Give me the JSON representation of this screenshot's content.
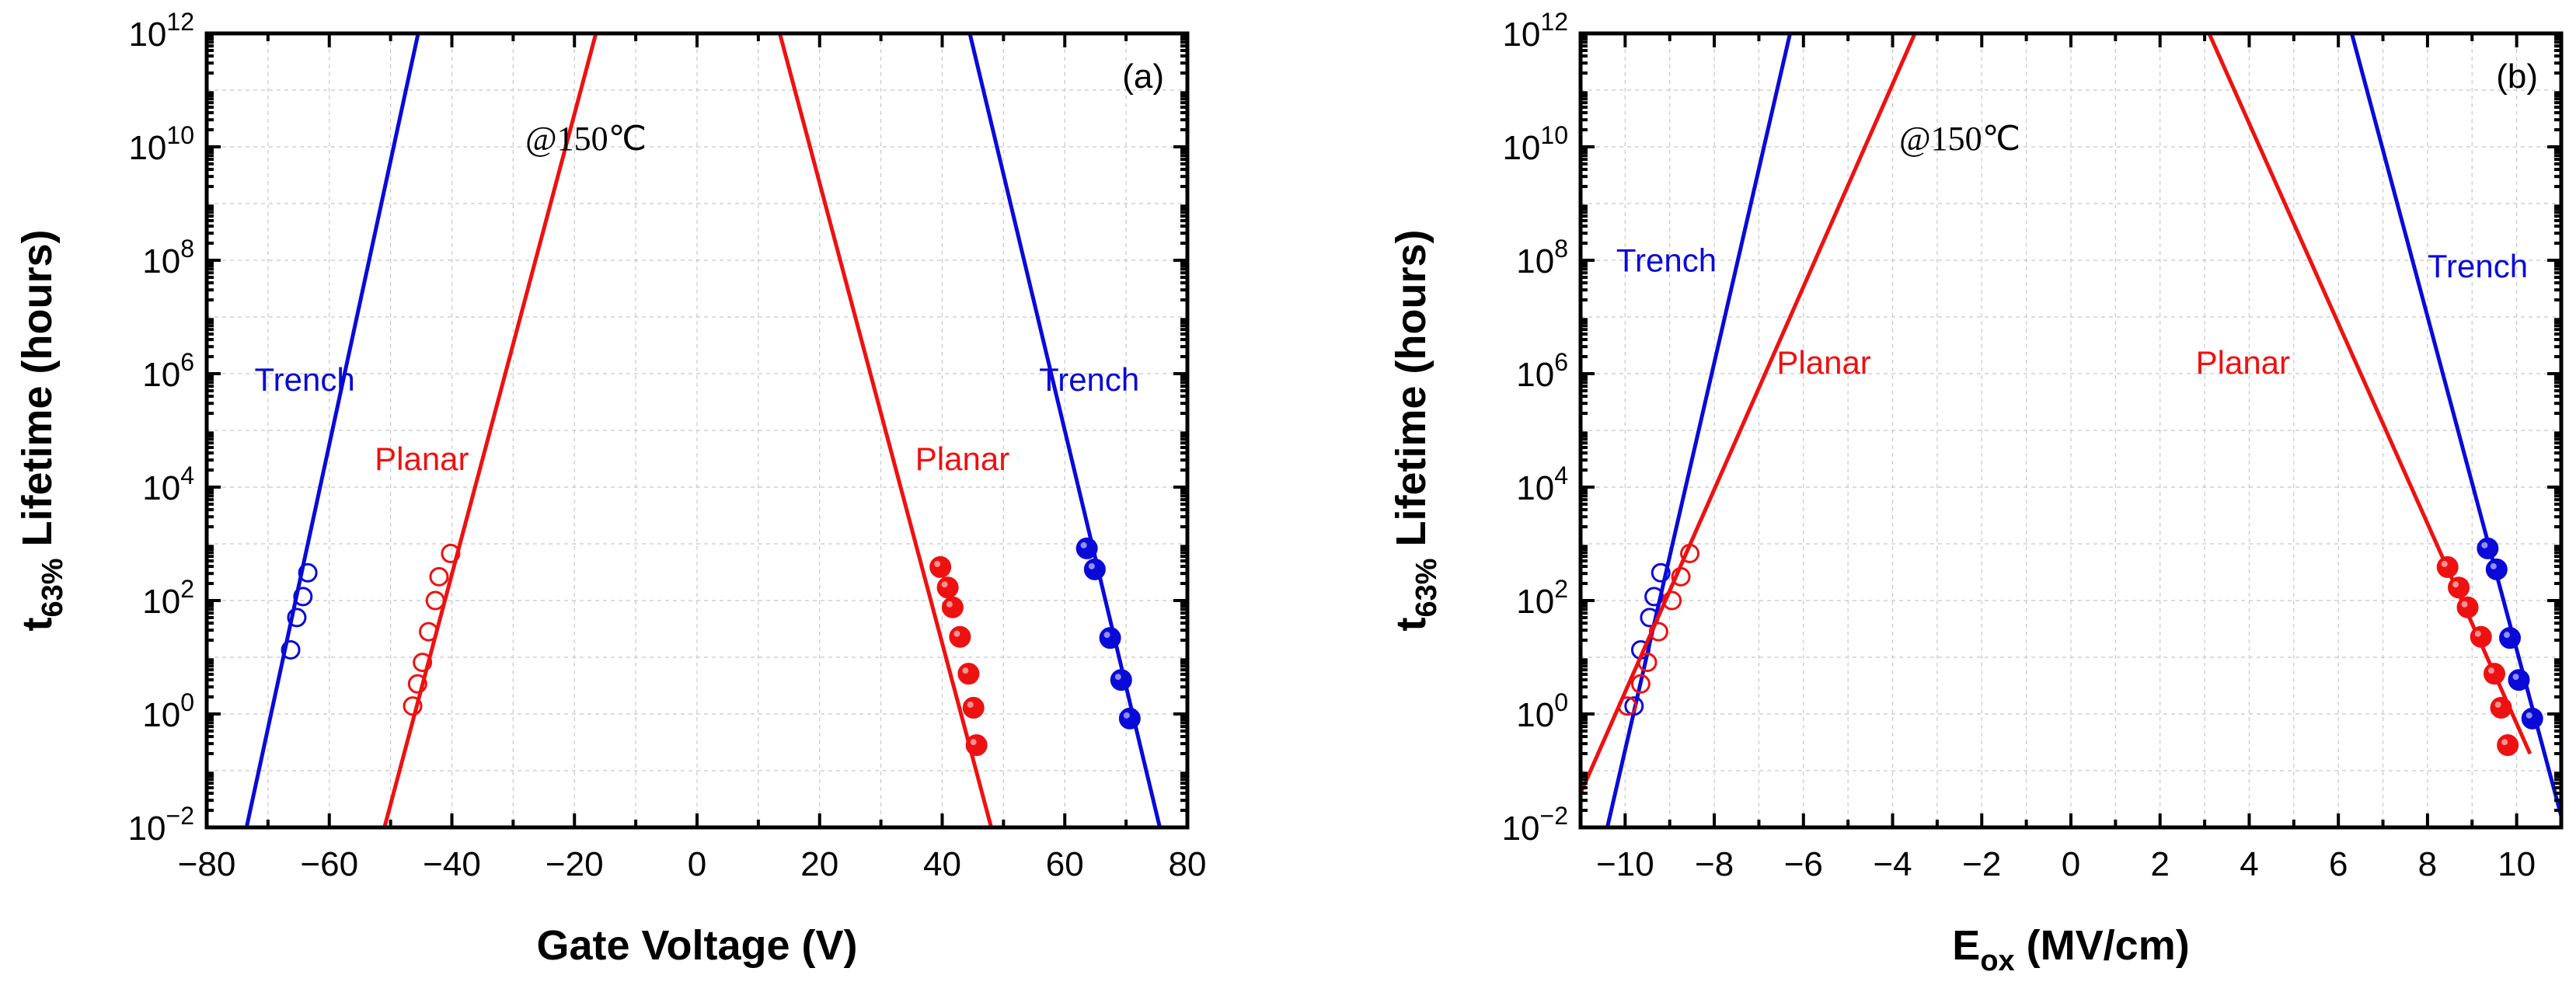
{
  "chart_data": [
    {
      "type": "scatter",
      "panel_label": "(a)",
      "annotation": "@150℃",
      "xlabel": "Gate Voltage (V)",
      "ylabel_main": "t",
      "ylabel_sub": "63%",
      "ylabel_rest": " Lifetime (hours)",
      "xlim": [
        -80,
        80
      ],
      "xticks": [
        -80,
        -60,
        -40,
        -20,
        0,
        20,
        40,
        60,
        80
      ],
      "xtick_labels": [
        "−80",
        "−60",
        "−40",
        "−20",
        "0",
        "20",
        "40",
        "60",
        "80"
      ],
      "ylim_log10": [
        -2,
        12
      ],
      "yscale": "log",
      "yticks_exp": [
        -2,
        0,
        2,
        4,
        6,
        8,
        10,
        12
      ],
      "ytick_labels": [
        "10^-2",
        "10^0",
        "10^2",
        "10^4",
        "10^6",
        "10^8",
        "10^10",
        "10^12"
      ],
      "grid": true,
      "series": [
        {
          "label": "Trench",
          "color": "#0a0ad8",
          "marker": "open",
          "fit": [
            [
              -73.5,
              -2
            ],
            [
              -45.5,
              12
            ]
          ],
          "points": [
            [
              -66.3,
              1.13
            ],
            [
              -65.3,
              1.7
            ],
            [
              -64.3,
              2.07
            ],
            [
              -63.5,
              2.49
            ]
          ]
        },
        {
          "label": "Planar",
          "color": "#ee1111",
          "marker": "open",
          "fit": [
            [
              -51,
              -2
            ],
            [
              -16.5,
              12
            ]
          ],
          "points": [
            [
              -46.4,
              0.14
            ],
            [
              -45.6,
              0.53
            ],
            [
              -44.8,
              0.91
            ],
            [
              -43.8,
              1.45
            ],
            [
              -42.7,
              2.0
            ],
            [
              -42.1,
              2.42
            ],
            [
              -40.2,
              2.83
            ]
          ]
        },
        {
          "label": "Planar",
          "color": "#ee1111",
          "marker": "filled",
          "fit": [
            [
              13.5,
              12
            ],
            [
              48,
              -2
            ]
          ],
          "points": [
            [
              39.7,
              2.59
            ],
            [
              40.9,
              2.23
            ],
            [
              41.7,
              1.88
            ],
            [
              42.9,
              1.36
            ],
            [
              44.3,
              0.71
            ],
            [
              45.1,
              0.11
            ],
            [
              45.6,
              -0.55
            ]
          ]
        },
        {
          "label": "Trench",
          "color": "#0a0ad8",
          "marker": "filled",
          "fit": [
            [
              44.5,
              12
            ],
            [
              75.5,
              -2
            ]
          ],
          "points": [
            [
              63.6,
              2.92
            ],
            [
              64.9,
              2.55
            ],
            [
              67.4,
              1.34
            ],
            [
              69.2,
              0.6
            ],
            [
              70.6,
              -0.08
            ]
          ]
        }
      ],
      "labels": [
        {
          "text": "Trench",
          "color": "#0a0ad8",
          "x": -72.2,
          "y": 5.7
        },
        {
          "text": "Planar",
          "color": "#ee1111",
          "x": -52.6,
          "y": 4.3
        },
        {
          "text": "Planar",
          "color": "#ee1111",
          "x": 35.6,
          "y": 4.3
        },
        {
          "text": "Trench",
          "color": "#0a0ad8",
          "x": 55.8,
          "y": 5.7
        }
      ]
    },
    {
      "type": "scatter",
      "panel_label": "(b)",
      "annotation": "@150℃",
      "xlabel_main": "E",
      "xlabel_sub": "ox",
      "xlabel_rest": " (MV/cm)",
      "ylabel_main": "t",
      "ylabel_sub": "63%",
      "ylabel_rest": " Lifetime (hours)",
      "xlim": [
        -11,
        11
      ],
      "xticks": [
        -10,
        -8,
        -6,
        -4,
        -2,
        0,
        2,
        4,
        6,
        8,
        10
      ],
      "xtick_labels": [
        "−10",
        "−8",
        "−6",
        "−4",
        "−2",
        "0",
        "2",
        "4",
        "6",
        "8",
        "10"
      ],
      "ylim_log10": [
        -2,
        12
      ],
      "yscale": "log",
      "yticks_exp": [
        -2,
        0,
        2,
        4,
        6,
        8,
        10,
        12
      ],
      "ytick_labels": [
        "10^-2",
        "10^0",
        "10^2",
        "10^4",
        "10^6",
        "10^8",
        "10^10",
        "10^12"
      ],
      "grid": true,
      "series": [
        {
          "label": "Trench",
          "color": "#0a0ad8",
          "marker": "open",
          "fit": [
            [
              -10.4,
              -2
            ],
            [
              -6.3,
              12
            ]
          ],
          "points": [
            [
              -9.8,
              0.14
            ],
            [
              -9.65,
              1.13
            ],
            [
              -9.45,
              1.7
            ],
            [
              -9.35,
              2.07
            ],
            [
              -9.2,
              2.49
            ]
          ]
        },
        {
          "label": "Planar",
          "color": "#ee1111",
          "marker": "open",
          "fit": [
            [
              -11,
              -1.4
            ],
            [
              -3.5,
              12
            ]
          ],
          "points": [
            [
              -9.95,
              0.14
            ],
            [
              -9.65,
              0.53
            ],
            [
              -9.5,
              0.91
            ],
            [
              -9.25,
              1.45
            ],
            [
              -8.95,
              2.0
            ],
            [
              -8.75,
              2.42
            ],
            [
              -8.55,
              2.83
            ]
          ]
        },
        {
          "label": "Planar",
          "color": "#ee1111",
          "marker": "filled",
          "fit": [
            [
              3.1,
              12
            ],
            [
              10.3,
              -0.7
            ]
          ],
          "points": [
            [
              8.45,
              2.59
            ],
            [
              8.7,
              2.23
            ],
            [
              8.9,
              1.88
            ],
            [
              9.2,
              1.36
            ],
            [
              9.5,
              0.71
            ],
            [
              9.65,
              0.11
            ],
            [
              9.8,
              -0.55
            ]
          ]
        },
        {
          "label": "Trench",
          "color": "#0a0ad8",
          "marker": "filled",
          "fit": [
            [
              6.3,
              12
            ],
            [
              11,
              -1.8
            ]
          ],
          "points": [
            [
              9.35,
              2.92
            ],
            [
              9.55,
              2.55
            ],
            [
              9.85,
              1.34
            ],
            [
              10.05,
              0.6
            ],
            [
              10.35,
              -0.08
            ]
          ]
        }
      ],
      "labels": [
        {
          "text": "Trench",
          "color": "#0a0ad8",
          "x": -10.2,
          "y": 7.8
        },
        {
          "text": "Planar",
          "color": "#ee1111",
          "x": -6.6,
          "y": 6.0
        },
        {
          "text": "Planar",
          "color": "#ee1111",
          "x": 2.8,
          "y": 6.0
        },
        {
          "text": "Trench",
          "color": "#0a0ad8",
          "x": 8.0,
          "y": 7.7
        }
      ]
    }
  ]
}
